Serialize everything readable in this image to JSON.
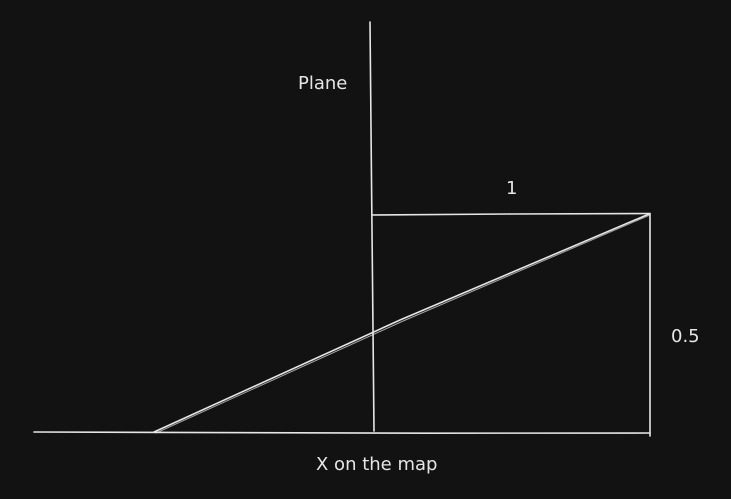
{
  "diagram": {
    "labels": {
      "plane": "Plane",
      "top_width": "1",
      "height": "0.5",
      "x_axis": "X on the map"
    },
    "colors": {
      "background": "#121212",
      "stroke": "#e6e6e6"
    }
  }
}
